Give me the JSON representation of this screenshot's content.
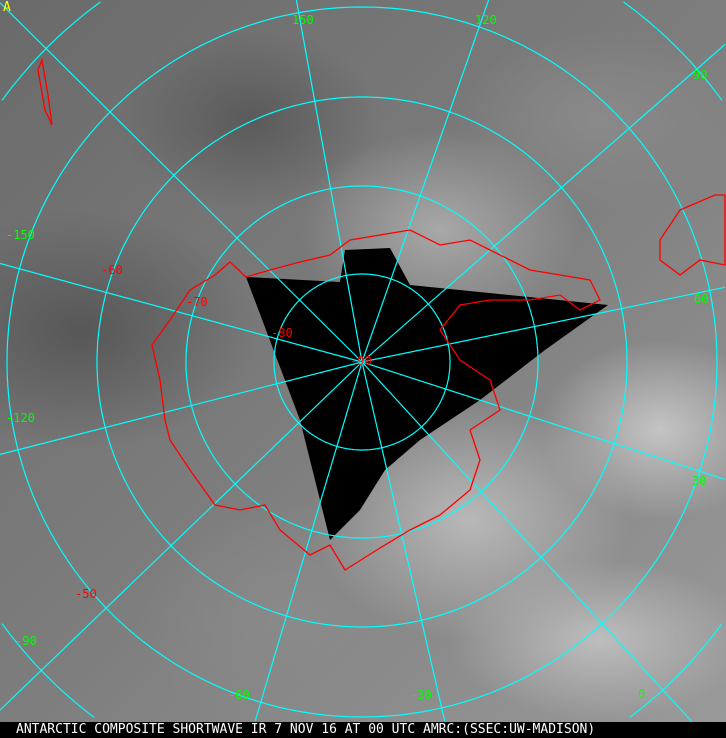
{
  "caption": "ANTARCTIC COMPOSITE SHORTWAVE IR 7 NOV 16 AT 00 UTC AMRC:(SSEC:UW-MADISON)",
  "caption_mark": "A",
  "colors": {
    "graticule": "#00ffff",
    "coastline": "#ff0000",
    "longitude_labels": "#00ff00",
    "latitude_labels": "#ff0000",
    "no_data": "#000000"
  },
  "longitude_labels": [
    "150",
    "120",
    "90",
    "60",
    "30",
    "0",
    "-30",
    "-60",
    "-90",
    "-120",
    "-150"
  ],
  "latitude_labels": [
    "-50",
    "-60",
    "-70",
    "-80",
    "-90"
  ]
}
